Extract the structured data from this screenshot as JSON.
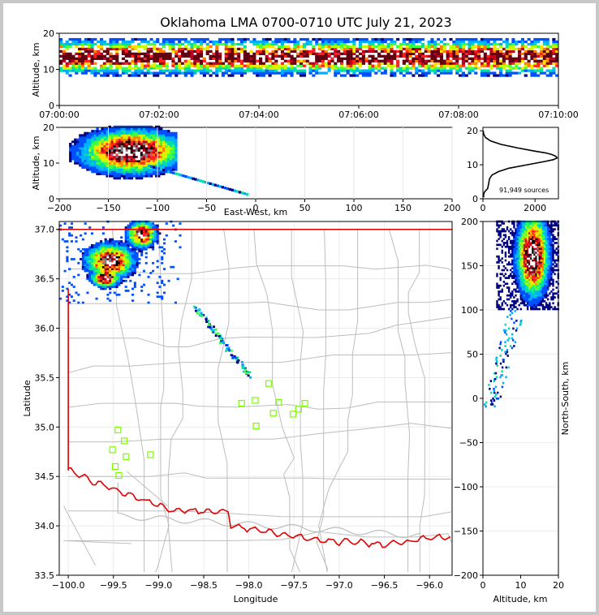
{
  "title": "Oklahoma LMA 0700-0710 UTC July 21, 2023",
  "colors": {
    "state_border": "#e00000",
    "county_lines": "#bdbdbd",
    "station_marker": "#7cfc00",
    "density_scale": [
      "#000080",
      "#0050ff",
      "#00b0ff",
      "#00e0a0",
      "#40ff40",
      "#c0ff00",
      "#ffe000",
      "#ff8000",
      "#ff2020",
      "#c00020",
      "#600010",
      "#000000",
      "#808080",
      "#ffffff"
    ]
  },
  "chart_data": [
    {
      "name": "time_height",
      "type": "heatmap",
      "xlabel": "",
      "ylabel": "Altitude, km",
      "ylim": [
        0,
        20
      ],
      "yticks": [
        "0",
        "10",
        "20"
      ],
      "xticks": [
        "07:00:00",
        "07:02:00",
        "07:04:00",
        "07:06:00",
        "07:08:00",
        "07:10:00"
      ],
      "xlim_minutes": [
        0,
        10
      ],
      "core_altitude_km": [
        10,
        17
      ]
    },
    {
      "name": "east_west_altitude",
      "type": "heatmap",
      "xlabel": "East-West, km",
      "ylabel": "Altitude, km",
      "xlim": [
        -200,
        200
      ],
      "ylim": [
        0,
        20
      ],
      "xticks": [
        "−200",
        "−150",
        "−100",
        "−50",
        "0",
        "50",
        "100",
        "150",
        "200"
      ],
      "yticks": [
        "0",
        "10",
        "20"
      ],
      "densest_cell": {
        "east_west_km": -128,
        "altitude_km": 13
      }
    },
    {
      "name": "altitude_histogram",
      "type": "line",
      "xlim": [
        0,
        2900
      ],
      "ylim": [
        0,
        21
      ],
      "xticks": [
        "0",
        "2000"
      ],
      "yticks": [
        "0",
        "10",
        "20"
      ],
      "annotation": "91,949 sources",
      "altitude_km": [
        0.5,
        1,
        2,
        3,
        4,
        5,
        6,
        7,
        8,
        9,
        10,
        11,
        11.5,
        12,
        12.5,
        13,
        13.5,
        14,
        15,
        16,
        17,
        18,
        19,
        20
      ],
      "source_count": [
        40,
        20,
        60,
        180,
        210,
        230,
        260,
        350,
        600,
        1000,
        1700,
        2400,
        2700,
        2850,
        2800,
        2650,
        2400,
        2000,
        1300,
        700,
        300,
        100,
        30,
        10
      ]
    },
    {
      "name": "plan_view",
      "type": "scatter",
      "xlabel": "Longitude",
      "ylabel": "Latitude",
      "xlim": [
        -100.1,
        -95.75
      ],
      "ylim": [
        33.5,
        37.08
      ],
      "xticks": [
        "−100.0",
        "−99.5",
        "−99.0",
        "−98.5",
        "−98.0",
        "−97.5",
        "−97.0",
        "−96.5",
        "−96.0"
      ],
      "yticks": [
        "33.5",
        "34.0",
        "34.5",
        "35.0",
        "35.5",
        "36.0",
        "36.5",
        "37.0"
      ],
      "stations": [
        {
          "lon": -99.45,
          "lat": 34.97
        },
        {
          "lon": -99.38,
          "lat": 34.86
        },
        {
          "lon": -99.51,
          "lat": 34.77
        },
        {
          "lon": -99.36,
          "lat": 34.7
        },
        {
          "lon": -99.09,
          "lat": 34.72
        },
        {
          "lon": -99.48,
          "lat": 34.6
        },
        {
          "lon": -99.44,
          "lat": 34.51
        },
        {
          "lon": -98.08,
          "lat": 35.24
        },
        {
          "lon": -97.93,
          "lat": 35.27
        },
        {
          "lon": -97.78,
          "lat": 35.44
        },
        {
          "lon": -97.92,
          "lat": 35.01
        },
        {
          "lon": -97.73,
          "lat": 35.14
        },
        {
          "lon": -97.67,
          "lat": 35.25
        },
        {
          "lon": -97.51,
          "lat": 35.13
        },
        {
          "lon": -97.45,
          "lat": 35.18
        },
        {
          "lon": -97.38,
          "lat": 35.24
        }
      ],
      "source_tail": {
        "from": {
          "lon": -98.6,
          "lat": 36.2
        },
        "to": {
          "lon": -98.0,
          "lat": 35.5
        }
      }
    },
    {
      "name": "altitude_north_south",
      "type": "heatmap",
      "xlabel": "Altitude, km",
      "ylabel": "North-South, km",
      "xlim": [
        0,
        20
      ],
      "ylim": [
        -200,
        200
      ],
      "xticks": [
        "0",
        "10",
        "20"
      ],
      "yticks": [
        "−200",
        "−150",
        "−100",
        "−50",
        "0",
        "50",
        "100",
        "150",
        "200"
      ]
    }
  ]
}
